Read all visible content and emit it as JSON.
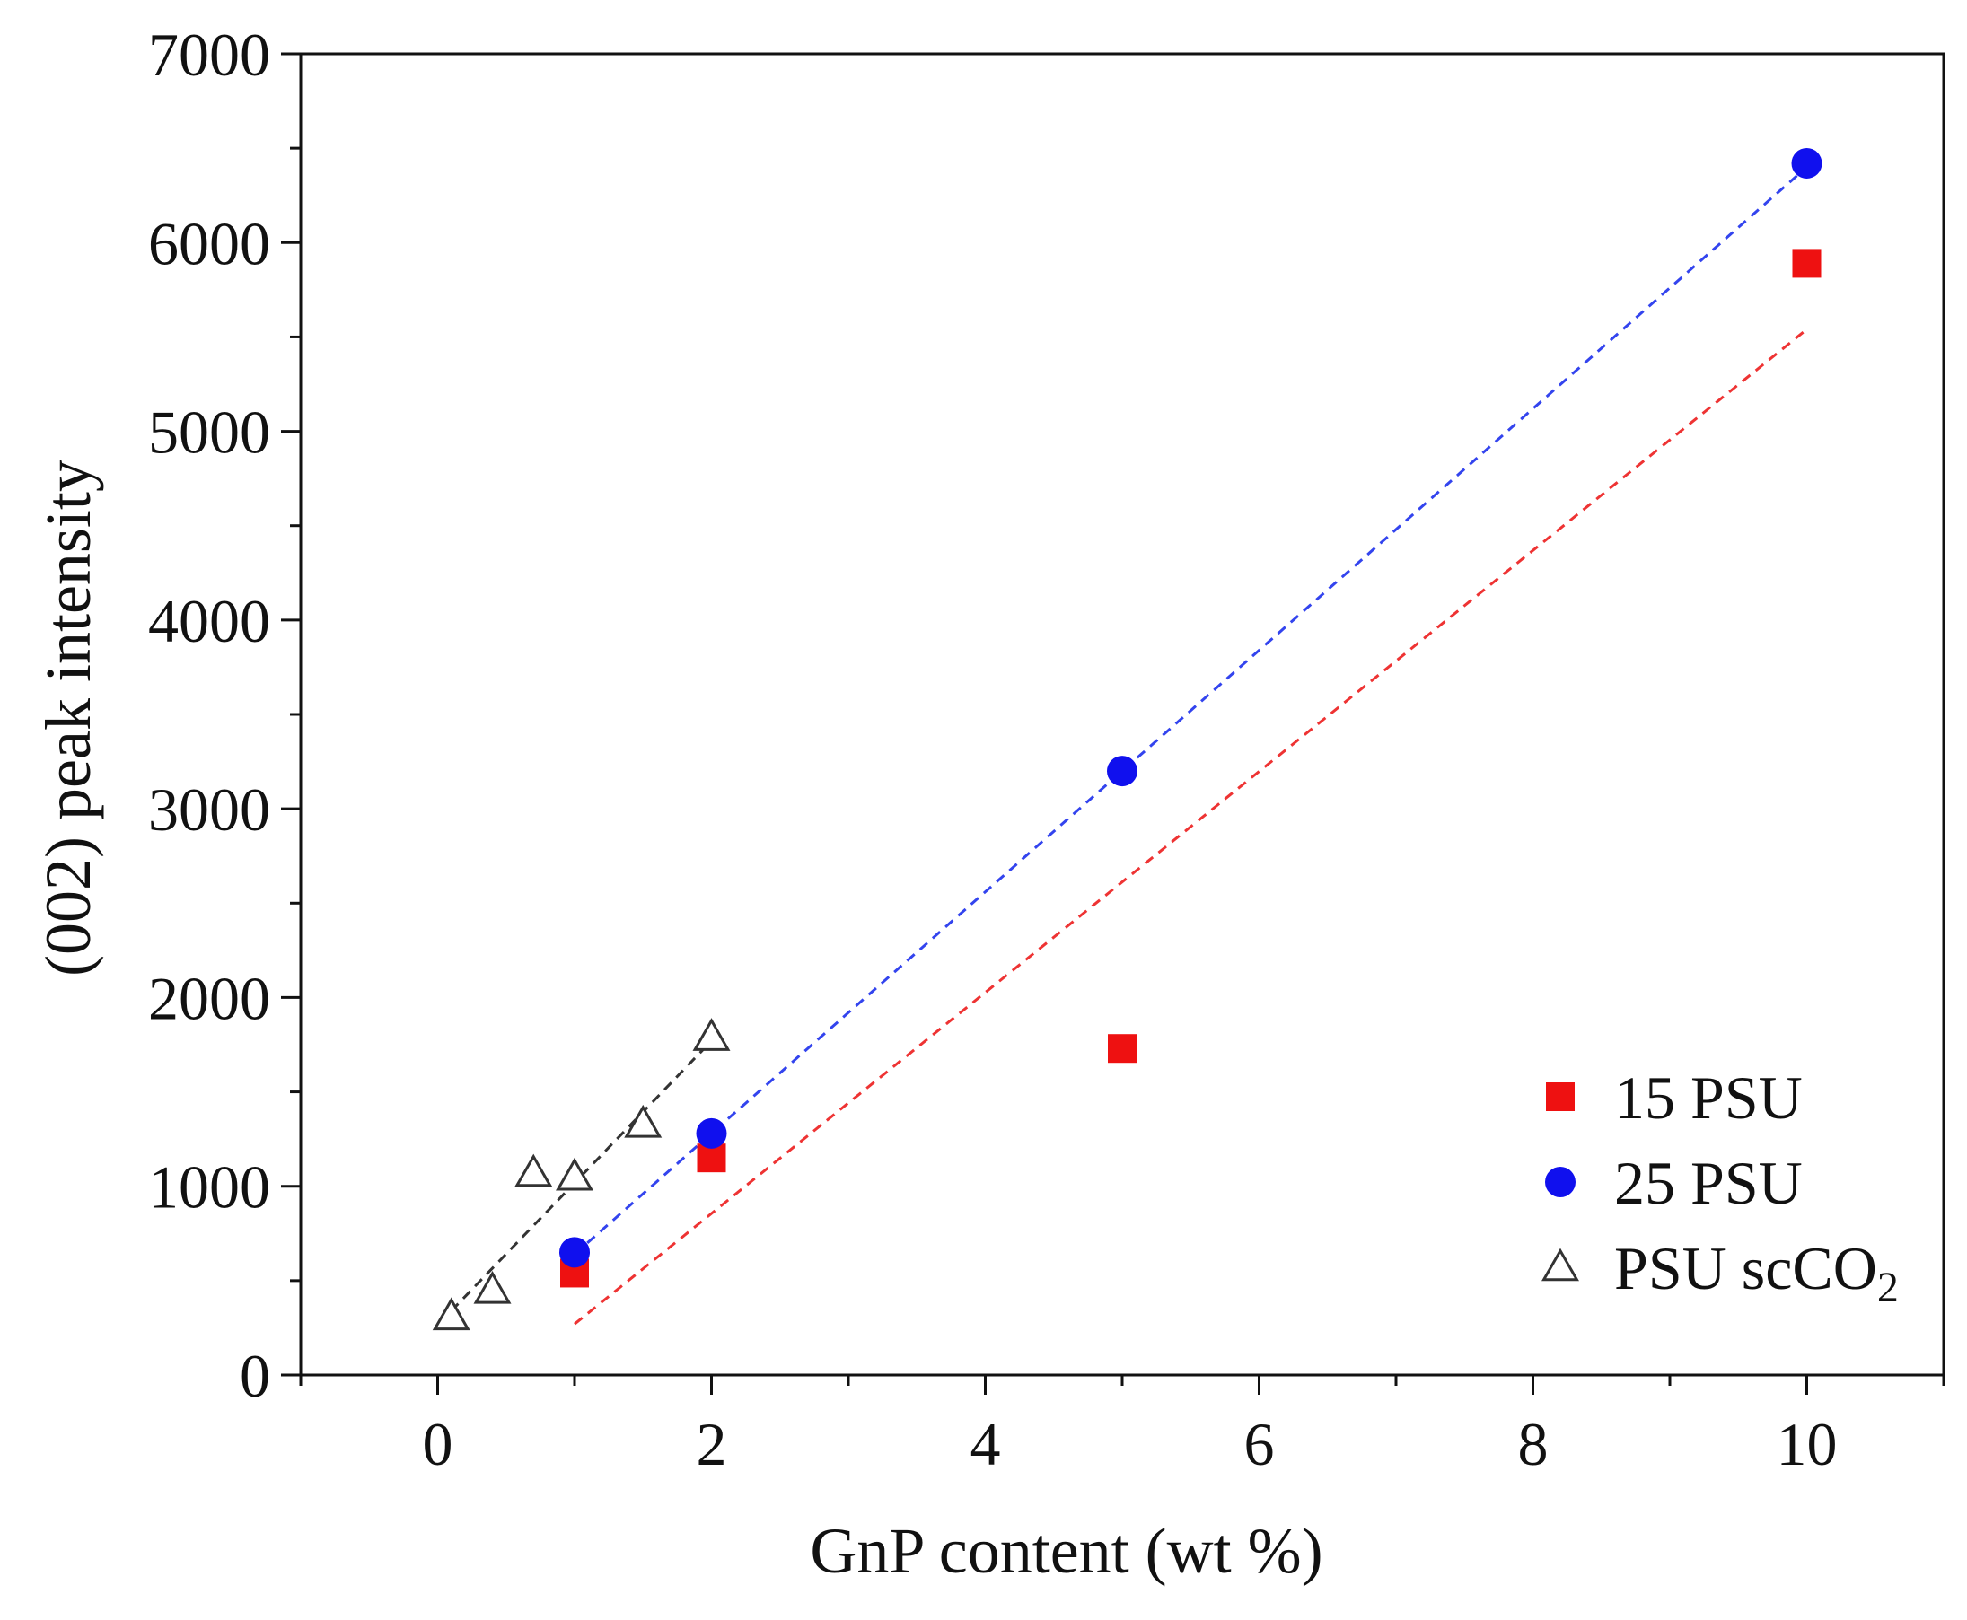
{
  "chart_data": {
    "type": "scatter",
    "title": "",
    "xlabel": "GnP content (wt %)",
    "ylabel": "(002) peak intensity",
    "xlim": [
      -1,
      11
    ],
    "ylim": [
      0,
      7000
    ],
    "xticks": [
      0,
      2,
      4,
      6,
      8,
      10
    ],
    "yticks": [
      0,
      1000,
      2000,
      3000,
      4000,
      5000,
      6000,
      7000
    ],
    "grid": false,
    "legend_position": "bottom-right",
    "series": [
      {
        "name": "15 PSU",
        "marker": "square",
        "color": "#ee1111",
        "x": [
          1,
          2,
          5,
          10
        ],
        "y": [
          540,
          1150,
          1730,
          5890
        ],
        "fit": {
          "x": [
            1,
            10
          ],
          "y": [
            270,
            5540
          ],
          "color": "#ee3333"
        }
      },
      {
        "name": "25 PSU",
        "marker": "circle",
        "color": "#1010ee",
        "x": [
          1,
          2,
          5,
          10
        ],
        "y": [
          650,
          1280,
          3200,
          6420
        ],
        "fit": {
          "x": [
            1,
            10
          ],
          "y": [
            640,
            6400
          ],
          "color": "#3344ee"
        }
      },
      {
        "name": "PSU scCO",
        "name_subscript": "2",
        "marker": "triangle-open",
        "color": "#333333",
        "x": [
          0.1,
          0.4,
          0.7,
          1.0,
          1.5,
          2.0
        ],
        "y": [
          310,
          450,
          1070,
          1050,
          1330,
          1790
        ],
        "fit": {
          "x": [
            0.1,
            2.0
          ],
          "y": [
            340,
            1770
          ],
          "color": "#333333"
        }
      }
    ]
  }
}
